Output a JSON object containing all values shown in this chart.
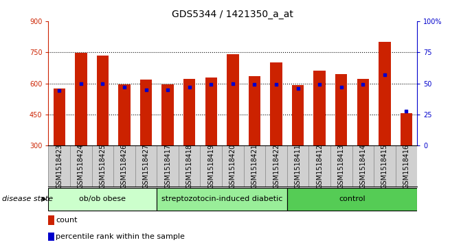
{
  "title": "GDS5344 / 1421350_a_at",
  "samples": [
    "GSM1518423",
    "GSM1518424",
    "GSM1518425",
    "GSM1518426",
    "GSM1518427",
    "GSM1518417",
    "GSM1518418",
    "GSM1518419",
    "GSM1518420",
    "GSM1518421",
    "GSM1518422",
    "GSM1518411",
    "GSM1518412",
    "GSM1518413",
    "GSM1518414",
    "GSM1518415",
    "GSM1518416"
  ],
  "counts": [
    575,
    748,
    735,
    597,
    617,
    595,
    622,
    630,
    742,
    635,
    700,
    592,
    663,
    645,
    622,
    800,
    455
  ],
  "percentiles": [
    44,
    50,
    50,
    47,
    45,
    45,
    47,
    49,
    50,
    49,
    49,
    46,
    49,
    47,
    49,
    57,
    28
  ],
  "groups": [
    {
      "label": "ob/ob obese",
      "start": 0,
      "end": 5,
      "color": "#ccffcc"
    },
    {
      "label": "streptozotocin-induced diabetic",
      "start": 5,
      "end": 11,
      "color": "#99ee99"
    },
    {
      "label": "control",
      "start": 11,
      "end": 17,
      "color": "#55cc55"
    }
  ],
  "ylim_left": [
    300,
    900
  ],
  "ylim_right": [
    0,
    100
  ],
  "yticks_left": [
    300,
    450,
    600,
    750,
    900
  ],
  "yticks_right": [
    0,
    25,
    50,
    75,
    100
  ],
  "bar_color": "#cc2200",
  "dot_color": "#0000cc",
  "bar_bottom": 300,
  "plot_bg": "#ffffff",
  "tick_area_bg": "#d0d0d0",
  "title_fontsize": 10,
  "tick_fontsize": 7,
  "label_fontsize": 8,
  "legend_fontsize": 8
}
